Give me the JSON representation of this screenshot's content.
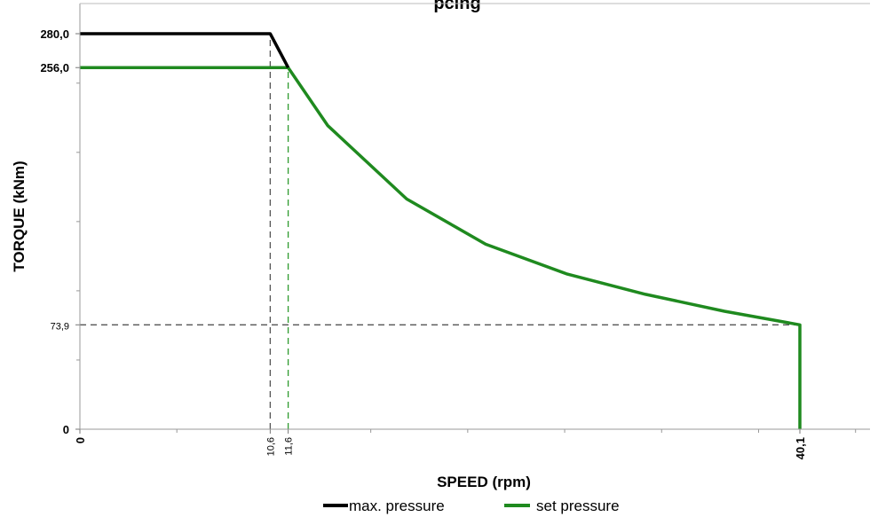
{
  "chart_data": {
    "type": "line",
    "title": "pcing",
    "xlabel": "SPEED (rpm)",
    "ylabel": "TORQUE (kNm)",
    "xlim": [
      0,
      43.5
    ],
    "ylim": [
      0,
      295
    ],
    "legend_position": "bottom",
    "x_ticks": [
      {
        "value": 0,
        "label": "0",
        "style": "bold"
      },
      {
        "value": 10.6,
        "label": "10,6",
        "style": "small"
      },
      {
        "value": 11.6,
        "label": "11,6",
        "style": "small"
      },
      {
        "value": 40.1,
        "label": "40,1",
        "style": "bold"
      }
    ],
    "x_minor_ticks": [
      5.4,
      16.2,
      21.6,
      27.0,
      32.4,
      37.8,
      43.2
    ],
    "y_ticks": [
      {
        "value": 0,
        "label": "0",
        "style": "bold"
      },
      {
        "value": 73.9,
        "label": "73,9",
        "style": "small"
      },
      {
        "value": 256.0,
        "label": "256,0",
        "style": "bold"
      },
      {
        "value": 280.0,
        "label": "280,0",
        "style": "bold"
      }
    ],
    "y_minor_ticks": [
      49,
      98,
      147,
      196,
      245
    ],
    "reference_lines": [
      {
        "color": "#555555",
        "points": [
          [
            10.6,
            0
          ],
          [
            10.6,
            280
          ]
        ]
      },
      {
        "color": "#2e9a2e",
        "points": [
          [
            11.6,
            0
          ],
          [
            11.6,
            256
          ]
        ]
      },
      {
        "color": "#555555",
        "points": [
          [
            0,
            73.9
          ],
          [
            40.1,
            73.9
          ]
        ]
      }
    ],
    "series": [
      {
        "name": "max. pressure",
        "color": "#000000",
        "points": [
          [
            0,
            280.0
          ],
          [
            10.6,
            280.0
          ],
          [
            11.6,
            256.0
          ]
        ]
      },
      {
        "name": "set pressure",
        "color": "#1f8a1f",
        "points": [
          [
            0,
            256.0
          ],
          [
            11.6,
            256.0
          ],
          [
            13.8,
            215.0
          ],
          [
            18.2,
            163.0
          ],
          [
            22.6,
            131.0
          ],
          [
            27.1,
            110.0
          ],
          [
            31.5,
            95.5
          ],
          [
            35.9,
            83.5
          ],
          [
            40.1,
            73.9
          ],
          [
            40.1,
            0
          ]
        ]
      }
    ]
  }
}
